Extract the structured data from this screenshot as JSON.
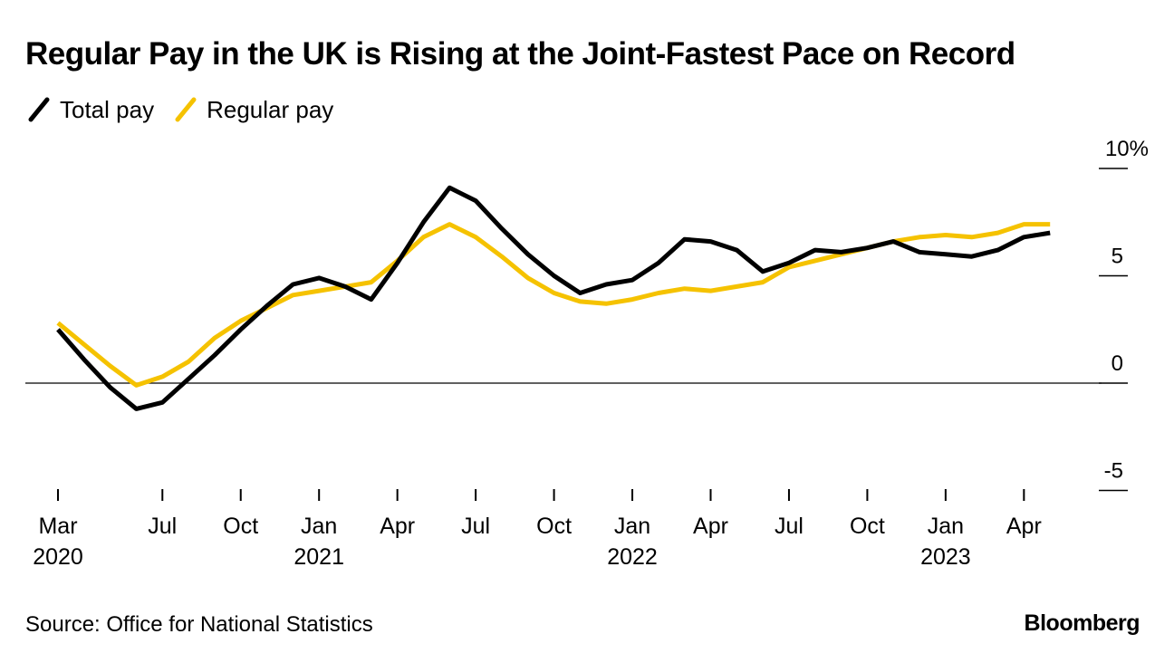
{
  "title": "Regular Pay in the UK is Rising at the Joint-Fastest Pace on Record",
  "source": "Source: Office for National Statistics",
  "brand": "Bloomberg",
  "colors": {
    "total": "#000000",
    "regular": "#f5c200",
    "axis": "#000000"
  },
  "chart_data": {
    "type": "line",
    "title": "Regular Pay in the UK is Rising at the Joint-Fastest Pace on Record",
    "ylabel": "%",
    "ylim": [
      -5,
      10
    ],
    "yticks": [
      {
        "value": 10,
        "label": "10%"
      },
      {
        "value": 5,
        "label": "5"
      },
      {
        "value": 0,
        "label": "0"
      },
      {
        "value": -5,
        "label": "-5"
      }
    ],
    "x_start": "2020-03",
    "x_months": 40,
    "xticks": [
      {
        "month": 0,
        "label": "Mar",
        "year": "2020"
      },
      {
        "month": 4,
        "label": "Jul",
        "year": ""
      },
      {
        "month": 7,
        "label": "Oct",
        "year": ""
      },
      {
        "month": 10,
        "label": "Jan",
        "year": "2021"
      },
      {
        "month": 13,
        "label": "Apr",
        "year": ""
      },
      {
        "month": 16,
        "label": "Jul",
        "year": ""
      },
      {
        "month": 19,
        "label": "Oct",
        "year": ""
      },
      {
        "month": 22,
        "label": "Jan",
        "year": "2022"
      },
      {
        "month": 25,
        "label": "Apr",
        "year": ""
      },
      {
        "month": 28,
        "label": "Jul",
        "year": ""
      },
      {
        "month": 31,
        "label": "Oct",
        "year": ""
      },
      {
        "month": 34,
        "label": "Jan",
        "year": "2023"
      },
      {
        "month": 37,
        "label": "Apr",
        "year": ""
      }
    ],
    "series": [
      {
        "name": "Total pay",
        "color": "#000000",
        "values": [
          2.5,
          1.1,
          -0.2,
          -1.2,
          -0.9,
          0.2,
          1.3,
          2.5,
          3.6,
          4.6,
          4.9,
          4.5,
          3.9,
          5.6,
          7.5,
          9.1,
          8.5,
          7.2,
          6.0,
          5.0,
          4.2,
          4.6,
          4.8,
          5.6,
          6.7,
          6.6,
          6.2,
          5.2,
          5.6,
          6.2,
          6.1,
          6.3,
          6.6,
          6.1,
          6.0,
          5.9,
          6.2,
          6.8,
          7.0
        ]
      },
      {
        "name": "Regular pay",
        "color": "#f5c200",
        "values": [
          2.8,
          1.8,
          0.8,
          -0.1,
          0.3,
          1.0,
          2.1,
          2.9,
          3.5,
          4.1,
          4.3,
          4.5,
          4.7,
          5.7,
          6.8,
          7.4,
          6.8,
          5.9,
          4.9,
          4.2,
          3.8,
          3.7,
          3.9,
          4.2,
          4.4,
          4.3,
          4.5,
          4.7,
          5.4,
          5.7,
          6.0,
          6.3,
          6.6,
          6.8,
          6.9,
          6.8,
          7.0,
          7.4,
          7.4
        ]
      }
    ],
    "legend": [
      "Total pay",
      "Regular pay"
    ]
  }
}
